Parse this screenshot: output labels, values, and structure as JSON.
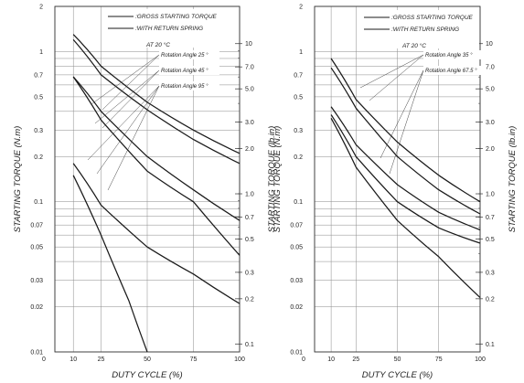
{
  "chart_data": [
    {
      "type": "line",
      "panel": "left",
      "xlabel": "DUTY CYCLE (%)",
      "ylabel": "STARTING TORQUE (N.m)",
      "y2label": "STARTING TORQUE (lb.in)",
      "yscale": "log",
      "xlim": [
        0,
        100
      ],
      "ylim": [
        0.01,
        2
      ],
      "grid": true,
      "x_ticks": [
        "0",
        "10",
        "25",
        "50",
        "75",
        "100"
      ],
      "y_ticks": [
        "2",
        "1",
        "0.7",
        "0.5",
        "0.3",
        "0.2",
        "0.1",
        "0.07",
        "0.05",
        "0.03",
        "0.02",
        "0.01"
      ],
      "y2_ticks": [
        "10",
        "7.0",
        "5.0",
        "3.0",
        "2.0",
        "1.0",
        "0.7",
        "0.5",
        "0.3",
        "0.2",
        "0.1"
      ],
      "legend": [
        {
          "label": ":GROSS STARTING TORQUE",
          "style": "solid"
        },
        {
          "label": ":WITH RETURN SPRING",
          "style": "solid"
        }
      ],
      "condition": "AT 20 °C",
      "annotations": [
        "Rotation Angle 25 °",
        "Rotation Angle 45 °",
        "Rotation Angle 95 °"
      ],
      "series": [
        {
          "x": [
            10,
            25,
            50,
            75,
            100
          ],
          "y": [
            1.3,
            0.8,
            0.46,
            0.3,
            0.21
          ]
        },
        {
          "x": [
            10,
            25,
            50,
            75,
            100
          ],
          "y": [
            1.2,
            0.7,
            0.41,
            0.26,
            0.18
          ]
        },
        {
          "x": [
            10,
            25,
            50,
            75,
            100
          ],
          "y": [
            0.68,
            0.4,
            0.2,
            0.12,
            0.075
          ]
        },
        {
          "x": [
            10,
            25,
            50,
            75,
            100
          ],
          "y": [
            0.68,
            0.35,
            0.16,
            0.1,
            0.044
          ]
        },
        {
          "x": [
            10,
            25,
            50,
            75,
            100
          ],
          "y": [
            0.18,
            0.095,
            0.05,
            0.033,
            0.021
          ]
        },
        {
          "x": [
            10,
            25,
            40,
            50
          ],
          "y": [
            0.15,
            0.06,
            0.022,
            0.01
          ]
        }
      ]
    },
    {
      "type": "line",
      "panel": "right",
      "xlabel": "DUTY CYCLE (%)",
      "ylabel": "STARTING TORQUE (N.m)",
      "y2label": "STARTING TORQUE (lb.in)",
      "yscale": "log",
      "xlim": [
        0,
        100
      ],
      "ylim": [
        0.01,
        2
      ],
      "grid": true,
      "x_ticks": [
        "0",
        "10",
        "25",
        "50",
        "75",
        "100"
      ],
      "y_ticks": [
        "2",
        "1",
        "0.7",
        "0.5",
        "0.3",
        "0.2",
        "0.1",
        "0.07",
        "0.05",
        "0.03",
        "0.02",
        "0.01"
      ],
      "y2_ticks": [
        "10",
        "7.0",
        "5.0",
        "3.0",
        "2.0",
        "1.0",
        "0.7",
        "0.5",
        "0.3",
        "0.2",
        "0.1"
      ],
      "legend": [
        {
          "label": ":GROSS STARTING TORQUE",
          "style": "solid"
        },
        {
          "label": ":WITH RETURN SPRING",
          "style": "solid"
        }
      ],
      "condition": "AT 20 °C",
      "annotations": [
        "Rotation Angle 35 °",
        "Rotation Angle 67.5 °"
      ],
      "series": [
        {
          "x": [
            10,
            25,
            50,
            75,
            100
          ],
          "y": [
            0.9,
            0.48,
            0.25,
            0.15,
            0.1
          ]
        },
        {
          "x": [
            10,
            25,
            50,
            75,
            100
          ],
          "y": [
            0.78,
            0.42,
            0.2,
            0.12,
            0.083
          ]
        },
        {
          "x": [
            10,
            25,
            50,
            75,
            100
          ],
          "y": [
            0.43,
            0.24,
            0.13,
            0.085,
            0.065
          ]
        },
        {
          "x": [
            10,
            25,
            50,
            75,
            100
          ],
          "y": [
            0.38,
            0.2,
            0.1,
            0.067,
            0.053
          ]
        },
        {
          "x": [
            10,
            25,
            50,
            75,
            100
          ],
          "y": [
            0.36,
            0.17,
            0.075,
            0.043,
            0.023
          ]
        }
      ]
    }
  ]
}
